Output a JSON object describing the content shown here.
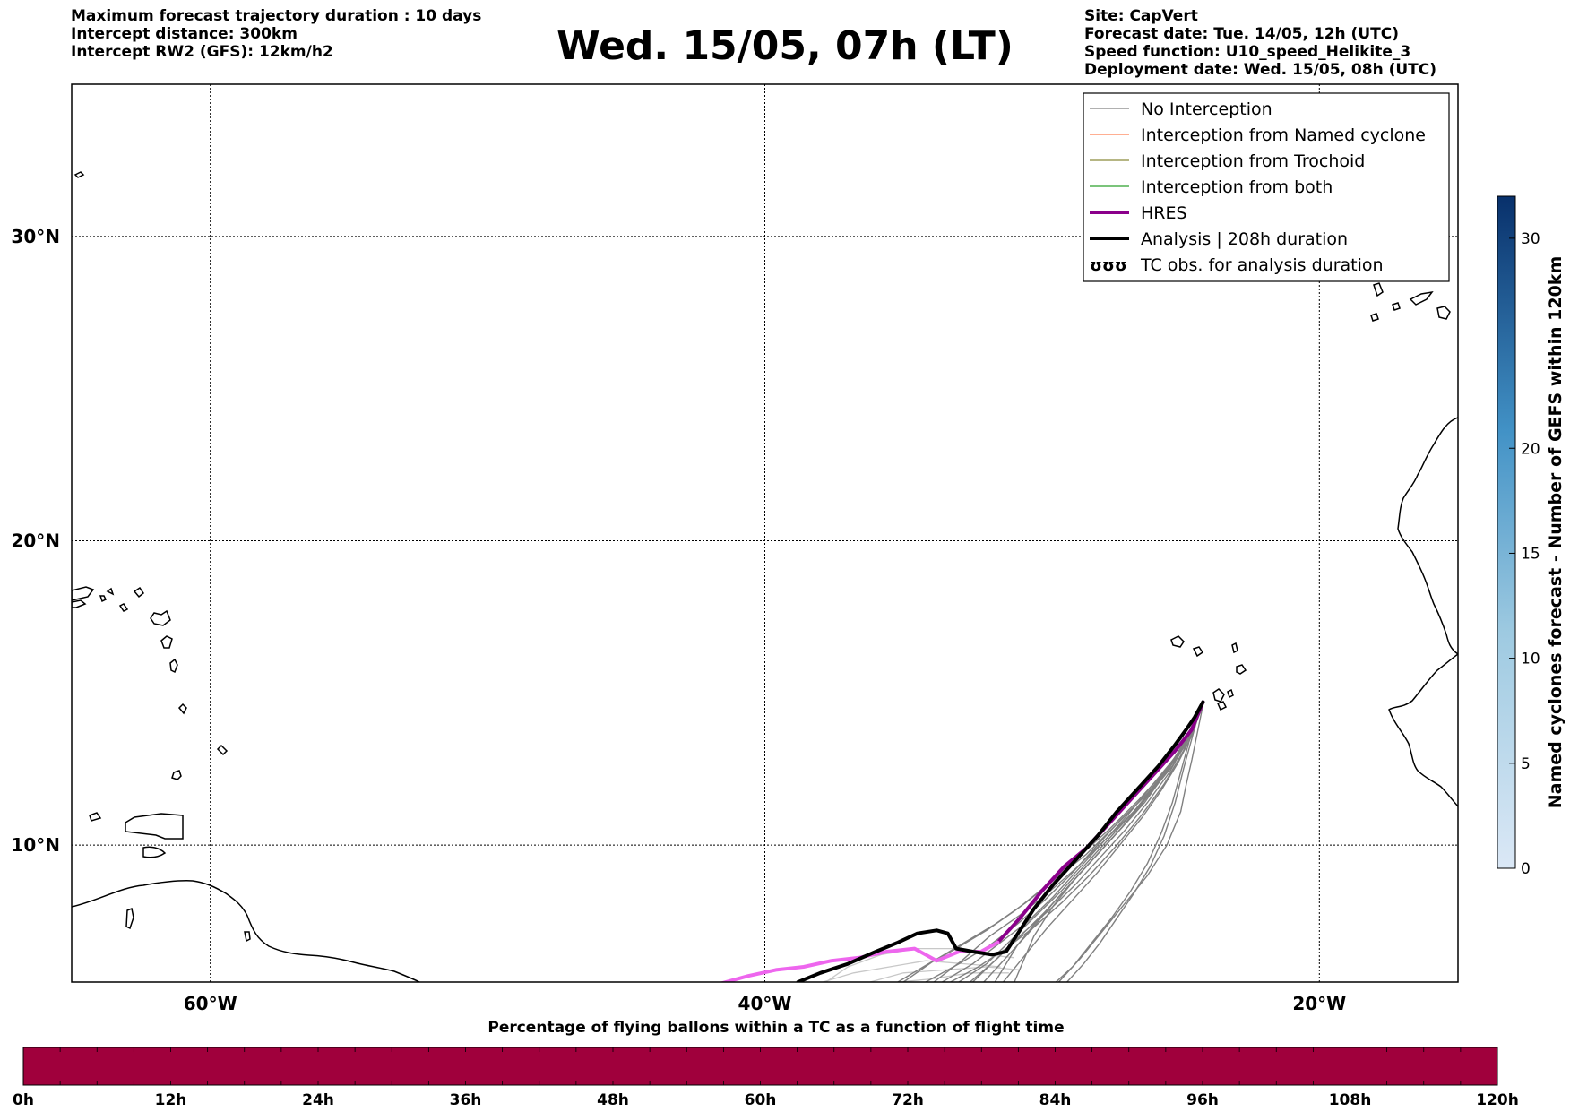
{
  "header_left": [
    "Maximum forecast trajectory duration : 10 days",
    "Intercept distance: 300km",
    "Intercept RW2 (GFS):  12km/h2"
  ],
  "title": "Wed. 15/05, 07h (LT)",
  "header_right": [
    "Site: CapVert",
    "Forecast date: Tue. 14/05, 12h (UTC)",
    "Speed function: U10_speed_Helikite_3",
    "Deployment date: Wed. 15/05, 08h (UTC)"
  ],
  "colors": {
    "no_interception": "#808080",
    "named_cyclone": "#ff7f50",
    "trochoid": "#8b8b3a",
    "both": "#2ca02c",
    "hres": "#8b008b",
    "hres_extension": "#ee66ee",
    "analysis": "#000000",
    "bottom_bar": "#a0003c"
  },
  "chart_data": {
    "type": "line",
    "map": {
      "lon_range": [
        -65,
        -15
      ],
      "lat_range": [
        5.5,
        35
      ],
      "x_ticks": [
        -60,
        -40,
        -20
      ],
      "x_tick_labels": [
        "60°W",
        "40°W",
        "20°W"
      ],
      "y_ticks": [
        10,
        20,
        30
      ],
      "y_tick_labels": [
        "10°N",
        "20°N",
        "30°N"
      ],
      "grid": true
    },
    "legend": {
      "position": "top-right",
      "entries": [
        {
          "label": "No Interception",
          "style": "no_interception"
        },
        {
          "label": "Interception from Named cyclone",
          "style": "named_cyclone"
        },
        {
          "label": "Interception from Trochoid",
          "style": "trochoid"
        },
        {
          "label": "Interception from both",
          "style": "both"
        },
        {
          "label": "HRES",
          "style": "hres"
        },
        {
          "label": "Analysis | 208h duration",
          "style": "analysis"
        },
        {
          "label": "TC obs. for analysis duration",
          "style": "tc_obs"
        }
      ]
    },
    "series": [
      {
        "name": "HRES",
        "color": "hres",
        "width": 4,
        "lon": [
          -24.2,
          -24.6,
          -25.2,
          -26.0,
          -26.8,
          -27.6,
          -28.4,
          -29.2,
          -30.0,
          -30.8,
          -31.6
        ],
        "lat": [
          14.7,
          13.8,
          13.1,
          12.3,
          11.5,
          10.7,
          9.9,
          9.3,
          8.5,
          7.6,
          6.8
        ]
      },
      {
        "name": "",
        "color": "hres_extension",
        "width": 4,
        "lon": [
          -31.6,
          -32.2,
          -33.0,
          -33.8,
          -34.6,
          -35.6,
          -36.6,
          -37.6,
          -38.6,
          -39.6,
          -40.6,
          -42.2
        ],
        "lat": [
          6.8,
          6.5,
          6.5,
          6.2,
          6.6,
          6.5,
          6.3,
          6.2,
          6.0,
          5.9,
          5.7,
          5.3
        ]
      },
      {
        "name": "Analysis | 208h duration",
        "color": "analysis",
        "width": 4,
        "lon": [
          -24.2,
          -24.5,
          -24.8,
          -25.2,
          -25.8,
          -26.5,
          -27.3,
          -28.0,
          -28.8,
          -29.6,
          -30.3,
          -30.8,
          -31.3,
          -31.8,
          -32.5,
          -33.1,
          -33.4,
          -33.8,
          -34.5,
          -35.2,
          -36.0,
          -37.0,
          -38.0,
          -38.8
        ],
        "lat": [
          14.7,
          14.2,
          13.8,
          13.3,
          12.6,
          11.9,
          11.1,
          10.3,
          9.5,
          8.7,
          7.9,
          7.2,
          6.5,
          6.4,
          6.5,
          6.6,
          7.1,
          7.2,
          7.1,
          6.8,
          6.5,
          6.1,
          5.8,
          5.5
        ]
      }
    ],
    "ensemble_members": [
      {
        "lon": [
          -24.2,
          -24.5,
          -25.0,
          -25.6,
          -26.3,
          -27.1,
          -27.9,
          -28.8,
          -29.6,
          -30.3,
          -31.0
        ],
        "lat": [
          14.6,
          13.9,
          13.1,
          12.3,
          11.4,
          10.6,
          9.8,
          8.9,
          8.0,
          7.0,
          5.5
        ]
      },
      {
        "lon": [
          -24.3,
          -24.6,
          -25.2,
          -25.9,
          -26.6,
          -27.4,
          -28.3,
          -29.2,
          -30.1,
          -30.9,
          -31.7
        ],
        "lat": [
          14.5,
          13.7,
          12.9,
          12.0,
          11.1,
          10.3,
          9.4,
          8.5,
          7.6,
          6.7,
          5.5
        ]
      },
      {
        "lon": [
          -24.3,
          -24.7,
          -25.3,
          -26.1,
          -26.9,
          -27.8,
          -28.7,
          -29.6,
          -30.4,
          -31.2,
          -32.1
        ],
        "lat": [
          14.4,
          13.5,
          12.6,
          11.7,
          10.8,
          9.9,
          9.0,
          8.1,
          7.2,
          6.4,
          5.5
        ]
      },
      {
        "lon": [
          -24.4,
          -24.8,
          -25.5,
          -26.3,
          -27.2,
          -28.1,
          -29.0,
          -29.9,
          -30.8,
          -31.7,
          -32.6
        ],
        "lat": [
          14.3,
          13.4,
          12.4,
          11.5,
          10.5,
          9.6,
          8.7,
          7.8,
          7.0,
          6.2,
          5.5
        ]
      },
      {
        "lon": [
          -24.4,
          -24.9,
          -25.7,
          -26.6,
          -27.5,
          -28.4,
          -29.3,
          -30.2,
          -31.1,
          -32.0,
          -33.0
        ],
        "lat": [
          14.2,
          13.2,
          12.2,
          11.2,
          10.3,
          9.4,
          8.5,
          7.7,
          6.9,
          6.1,
          5.5
        ]
      },
      {
        "lon": [
          -24.5,
          -25.1,
          -26.0,
          -26.9,
          -27.8,
          -28.7,
          -29.6,
          -30.5,
          -31.5,
          -32.5,
          -33.6
        ],
        "lat": [
          14.1,
          13.0,
          12.0,
          11.0,
          10.1,
          9.2,
          8.3,
          7.5,
          6.8,
          6.1,
          5.5
        ]
      },
      {
        "lon": [
          -24.5,
          -25.2,
          -26.2,
          -27.2,
          -28.1,
          -29.0,
          -29.9,
          -30.9,
          -31.9,
          -33.0,
          -34.2
        ],
        "lat": [
          14.0,
          12.8,
          11.7,
          10.8,
          9.9,
          9.0,
          8.2,
          7.4,
          6.7,
          6.1,
          5.5
        ]
      },
      {
        "lon": [
          -24.4,
          -24.7,
          -25.0,
          -25.3,
          -25.7,
          -26.2,
          -26.8,
          -27.5,
          -28.2,
          -28.9,
          -29.5
        ],
        "lat": [
          14.3,
          13.4,
          12.4,
          11.4,
          10.4,
          9.4,
          8.5,
          7.6,
          6.8,
          6.0,
          5.5
        ]
      },
      {
        "lon": [
          -24.3,
          -24.6,
          -24.9,
          -25.2,
          -25.6,
          -26.1,
          -26.7,
          -27.3,
          -27.9,
          -28.5,
          -29.1
        ],
        "lat": [
          14.5,
          13.5,
          12.5,
          11.4,
          10.3,
          9.3,
          8.4,
          7.6,
          6.8,
          6.1,
          5.5
        ]
      },
      {
        "lon": [
          -24.2,
          -24.4,
          -24.6,
          -24.8,
          -25.0,
          -25.5,
          -26.2,
          -27.0,
          -27.8,
          -28.6,
          -29.4
        ],
        "lat": [
          14.6,
          13.7,
          12.8,
          12.0,
          11.1,
          10.0,
          9.0,
          8.1,
          7.2,
          6.3,
          5.5
        ]
      },
      {
        "lon": [
          -24.4,
          -24.9,
          -25.6,
          -26.4,
          -27.3,
          -28.3,
          -29.3,
          -30.3,
          -31.3,
          -32.3,
          -33.3
        ],
        "lat": [
          14.2,
          13.1,
          12.0,
          11.0,
          10.0,
          9.0,
          8.1,
          7.3,
          6.6,
          6.0,
          5.5
        ]
      },
      {
        "lon": [
          -24.6,
          -25.3,
          -26.3,
          -27.4,
          -28.4,
          -29.5,
          -30.6,
          -31.7,
          -32.8,
          -33.9,
          -35.0
        ],
        "lat": [
          13.9,
          12.7,
          11.6,
          10.6,
          9.7,
          8.9,
          8.1,
          7.4,
          6.8,
          6.2,
          5.5
        ]
      },
      {
        "lon": [
          -24.3,
          -24.6,
          -25.1,
          -25.7,
          -26.4,
          -27.2,
          -28.0,
          -28.9,
          -29.8,
          -30.6,
          -31.4
        ],
        "lat": [
          14.4,
          13.6,
          12.7,
          11.8,
          10.9,
          10.0,
          9.1,
          8.2,
          7.3,
          6.4,
          5.5
        ]
      },
      {
        "lon": [
          -24.5,
          -25.0,
          -25.8,
          -26.7,
          -27.7,
          -28.7,
          -29.7,
          -30.8,
          -31.9,
          -32.9,
          -33.9
        ],
        "lat": [
          14.1,
          13.1,
          12.1,
          11.1,
          10.2,
          9.3,
          8.5,
          7.7,
          7.0,
          6.2,
          5.5
        ]
      },
      {
        "lon": [
          -24.6,
          -25.4,
          -26.5,
          -27.6,
          -28.7,
          -29.8,
          -30.9,
          -32.0,
          -33.1,
          -34.1,
          -35.2
        ],
        "lat": [
          13.8,
          12.6,
          11.5,
          10.5,
          9.6,
          8.7,
          7.9,
          7.2,
          6.6,
          6.1,
          5.5
        ]
      },
      {
        "lon": [
          -24.3,
          -24.8,
          -25.4,
          -26.2,
          -27.0,
          -27.9,
          -28.8,
          -29.7,
          -30.7,
          -31.6,
          -32.5
        ],
        "lat": [
          14.4,
          13.4,
          12.4,
          11.4,
          10.5,
          9.6,
          8.7,
          7.9,
          7.1,
          6.3,
          5.5
        ]
      }
    ],
    "faint_members": [
      {
        "lon": [
          -31.0,
          -32.0,
          -33.2,
          -34.5,
          -35.8,
          -37.0,
          -37.8
        ],
        "lat": [
          6.3,
          6.4,
          6.6,
          6.6,
          6.4,
          6.0,
          5.5
        ]
      },
      {
        "lon": [
          -31.5,
          -32.8,
          -34.2,
          -35.5,
          -36.8,
          -37.9
        ],
        "lat": [
          6.0,
          6.1,
          6.2,
          6.0,
          5.8,
          5.5
        ]
      },
      {
        "lon": [
          -30.8,
          -32.0,
          -33.5,
          -35.0,
          -36.2
        ],
        "lat": [
          5.9,
          6.0,
          5.9,
          5.8,
          5.5
        ]
      },
      {
        "lon": [
          -31.2,
          -32.6,
          -34.0,
          -35.2
        ],
        "lat": [
          5.8,
          5.8,
          5.6,
          5.5
        ]
      }
    ],
    "colorbar_right": {
      "label": "Named cyclones forecast - Number of GEFS within 120km",
      "range": [
        0,
        32
      ],
      "ticks": [
        0,
        5,
        10,
        15,
        20,
        30
      ],
      "tick_labels": [
        "0",
        "5",
        "10",
        "15",
        "20",
        "30"
      ]
    },
    "colorbar_bottom": {
      "title": "Percentage of flying ballons within a TC as a function of flight time",
      "range": [
        0,
        120
      ],
      "ticks": [
        0,
        12,
        24,
        36,
        48,
        60,
        72,
        84,
        96,
        108,
        120
      ],
      "tick_labels": [
        "0h",
        "12h",
        "24h",
        "36h",
        "48h",
        "60h",
        "72h",
        "84h",
        "96h",
        "108h",
        "120h"
      ]
    }
  }
}
